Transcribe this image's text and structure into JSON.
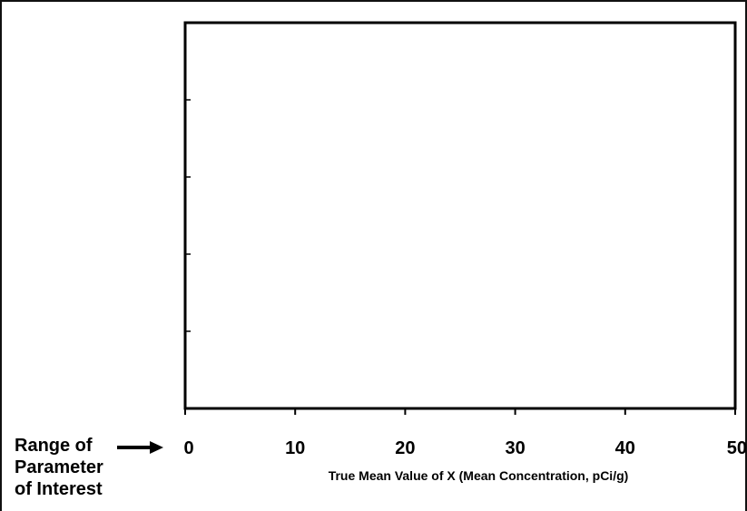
{
  "chart_data": {
    "type": "line",
    "title": "",
    "xlabel": "True Mean Value of X (Mean Concentration, pCi/g)",
    "ylabel": "",
    "xlim": [
      0,
      50
    ],
    "x_ticks": [
      0,
      10,
      20,
      30,
      40,
      50
    ],
    "x_tick_labels": [
      "0",
      "10",
      "20",
      "30",
      "40",
      "50"
    ],
    "y_tick_count": 4,
    "y_tick_labels": [],
    "grid": false,
    "series": []
  },
  "side_label": {
    "lines": [
      "Range of",
      "Parameter",
      "of Interest"
    ]
  }
}
